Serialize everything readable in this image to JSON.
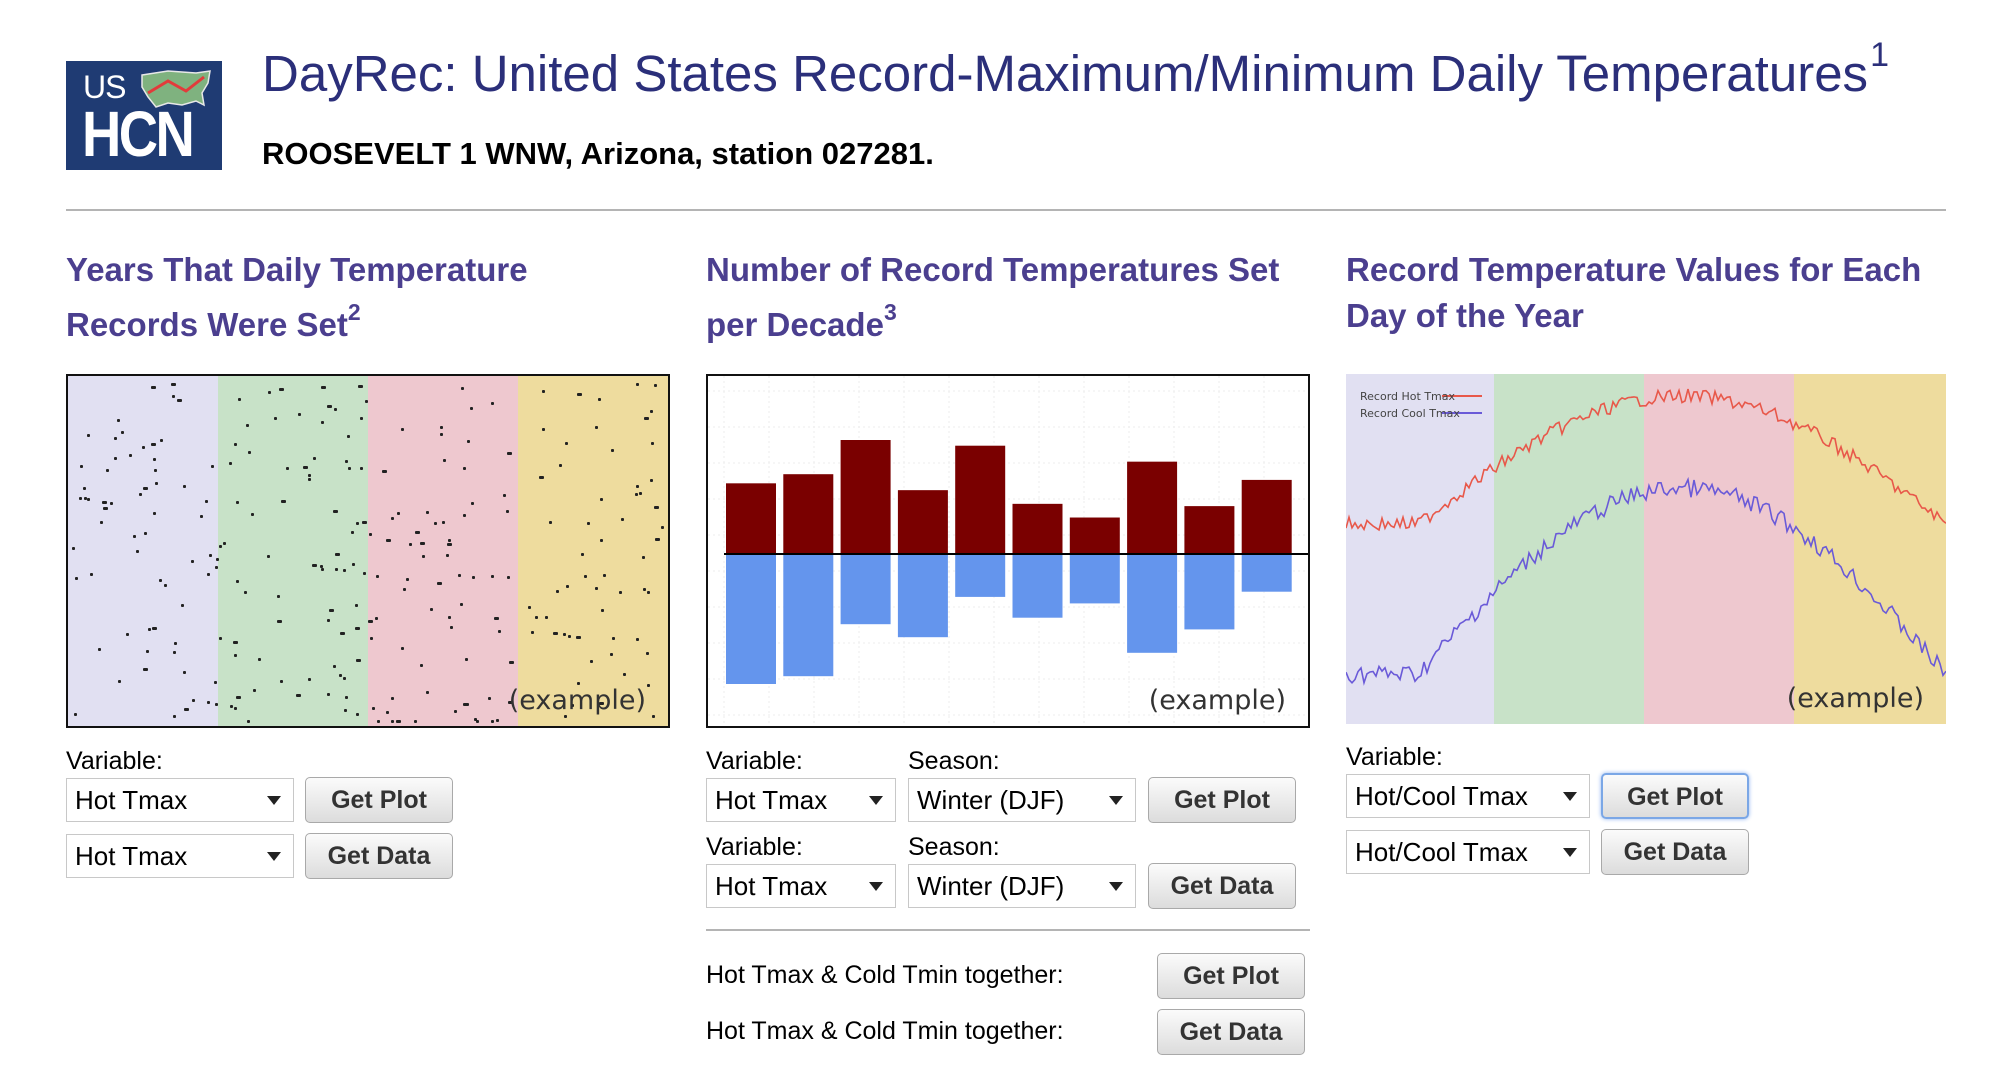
{
  "header": {
    "logo_top": "US",
    "logo_bottom": "HCN",
    "title": "DayRec: United States Record-Maximum/Minimum Daily Temperatures",
    "title_note": "1",
    "station": "ROOSEVELT 1 WNW, Arizona, station 027281."
  },
  "sections": {
    "years": {
      "title": "Years That Daily Temperature Records Were Set",
      "note": "2",
      "example_label": "(example)",
      "variable_label": "Variable:",
      "plot_select": "Hot Tmax",
      "data_select": "Hot Tmax",
      "plot_button": "Get Plot",
      "data_button": "Get Data"
    },
    "decade": {
      "title": "Number of Record Temperatures Set per Decade",
      "note": "3",
      "example_label": "(example)",
      "variable_label_1": "Variable:",
      "season_label_1": "Season:",
      "variable_select_1": "Hot Tmax",
      "season_select_1": "Winter (DJF)",
      "plot_button": "Get Plot",
      "variable_label_2": "Variable:",
      "season_label_2": "Season:",
      "variable_select_2": "Hot Tmax",
      "season_select_2": "Winter (DJF)",
      "data_button": "Get Data",
      "together_plot_label": "Hot Tmax & Cold Tmin together:",
      "together_plot_button": "Get Plot",
      "together_data_label": "Hot Tmax & Cold Tmin together:",
      "together_data_button": "Get Data",
      "bars_hot": [
        0.62,
        0.7,
        1.0,
        0.56,
        0.95,
        0.44,
        0.32,
        0.81,
        0.42,
        0.65
      ],
      "bars_cold": [
        1.0,
        0.94,
        0.54,
        0.64,
        0.33,
        0.49,
        0.38,
        0.76,
        0.58,
        0.29
      ]
    },
    "dayofyear": {
      "title": "Record Temperature Values for Each Day of the Year",
      "example_label": "(example)",
      "legend_hot": "Record Hot Tmax",
      "legend_cool": "Record Cool Tmax",
      "variable_label": "Variable:",
      "plot_select": "Hot/Cool Tmax",
      "data_select": "Hot/Cool Tmax",
      "plot_button": "Get Plot",
      "data_button": "Get Data"
    }
  },
  "colors": {
    "title": "#2b2f7a",
    "section_title": "#4b3f8f",
    "hot_bar": "#7a0000",
    "cold_bar": "#6495ed",
    "season_winter": "#e1e0f2",
    "season_spring": "#c8e2c8",
    "season_summer": "#eec8cf",
    "season_fall": "#eedc9e"
  }
}
